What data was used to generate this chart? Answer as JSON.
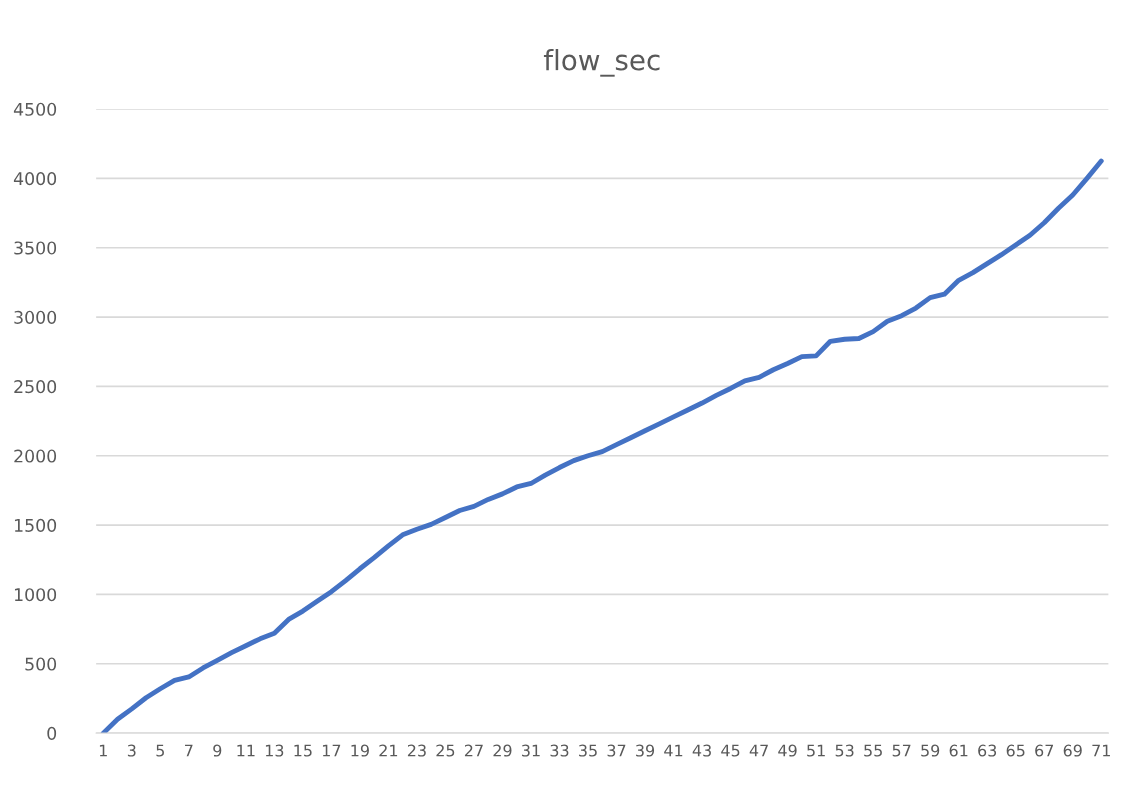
{
  "chart_data": {
    "type": "line",
    "title": "flow_sec",
    "categories": [
      "1",
      null,
      "3",
      null,
      "5",
      null,
      "7",
      null,
      "9",
      null,
      "11",
      null,
      "13",
      null,
      "15",
      null,
      "17",
      null,
      "19",
      null,
      "21",
      null,
      "23",
      null,
      "25",
      null,
      "27",
      null,
      "29",
      null,
      "31",
      null,
      "33",
      null,
      "35",
      null,
      "37",
      null,
      "39",
      null,
      "41",
      null,
      "43",
      null,
      "45",
      null,
      "47",
      null,
      "49",
      null,
      "51",
      null,
      "53",
      null,
      "55",
      null,
      "57",
      null,
      "59",
      null,
      "61",
      null,
      "63",
      null,
      "65",
      null,
      "67",
      null,
      "69",
      null,
      "71"
    ],
    "series": [
      {
        "color": "#4472c4",
        "values": [
          0,
          100,
          175,
          255,
          320,
          380,
          405,
          470,
          525,
          580,
          630,
          680,
          720,
          820,
          880,
          950,
          1020,
          1100,
          1185,
          1265,
          1350,
          1430,
          1470,
          1505,
          1555,
          1605,
          1635,
          1685,
          1725,
          1775,
          1800,
          1860,
          1915,
          1965,
          2000,
          2030,
          2080,
          2130,
          2180,
          2230,
          2280,
          2330,
          2380,
          2435,
          2485,
          2540,
          2565,
          2620,
          2665,
          2715,
          2720,
          2825,
          2840,
          2845,
          2895,
          2970,
          3010,
          3065,
          3140,
          3165,
          3265,
          3320,
          3385,
          3450,
          3520,
          3590,
          3680,
          3785,
          3880,
          4000,
          4125
        ]
      }
    ],
    "ylim": [
      0,
      4500
    ],
    "yticks": [
      0,
      500,
      1000,
      1500,
      2000,
      2500,
      3000,
      3500,
      4000,
      4500
    ],
    "grid": "y",
    "marker": "none",
    "line_style": "solid"
  }
}
